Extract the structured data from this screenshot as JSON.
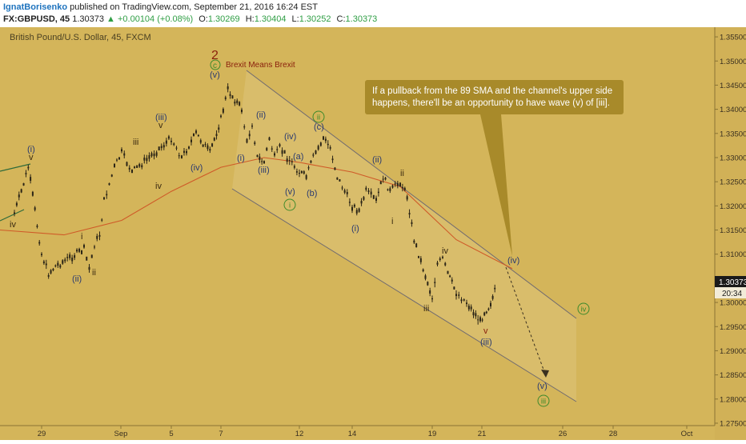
{
  "header": {
    "author": "IgnatBorisenko",
    "published": "published on TradingView.com, September 21, 2016 16:24 EST",
    "symbol": "FX:GBPUSD, 45",
    "last": "1.30373",
    "arrow": "▲",
    "change": "+0.00104 (+0.08%)",
    "o_label": "O:",
    "o_val": "1.30269",
    "h_label": "H:",
    "h_val": "1.30404",
    "l_label": "L:",
    "l_val": "1.30252",
    "c_label": "C:",
    "c_val": "1.30373"
  },
  "chart_data": {
    "type": "candlestick",
    "title": "British Pound/U.S. Dollar, 45, FXCM",
    "colors": {
      "background": "#d4b55a",
      "candles": "#2a2416",
      "sma": "#cf5a28",
      "channel": "#6f6a70",
      "label": "#2a3a70",
      "wave_green": "#3e8a2c",
      "wave_red": "#8a1f0c",
      "callout_bg": "#a88a2a"
    },
    "ylim": [
      1.2745,
      1.357
    ],
    "y_ticks": [
      "1.35500",
      "1.35000",
      "1.34500",
      "1.34000",
      "1.33500",
      "1.33000",
      "1.32500",
      "1.32000",
      "1.31500",
      "1.31000",
      "1.30500",
      "1.30000",
      "1.29500",
      "1.29000",
      "1.28500",
      "1.28000",
      "1.27500"
    ],
    "x_ticks": [
      "29",
      "Sep",
      "5",
      "7",
      "12",
      "14",
      "19",
      "21",
      "26",
      "28",
      "Oct"
    ],
    "last_price": "1.30373",
    "countdown": "20:34",
    "sma_label": "89 SMA",
    "price_path": [
      [
        "Aug 26",
        1.3185
      ],
      [
        "Aug 26",
        1.323
      ],
      [
        "Aug 26",
        1.328
      ],
      [
        "Aug 29",
        1.31
      ],
      [
        "Aug 29",
        1.306
      ],
      [
        "Aug 29",
        1.3075
      ],
      [
        "Aug 31",
        1.311
      ],
      [
        "Aug 31",
        1.307
      ],
      [
        "Aug 31",
        1.312
      ],
      [
        "Aug 31",
        1.314
      ],
      [
        "Sep 1",
        1.321
      ],
      [
        "Sep 1",
        1.328
      ],
      [
        "Sep 2",
        1.331
      ],
      [
        "Sep 2",
        1.327
      ],
      [
        "Sep 5",
        1.334
      ],
      [
        "Sep 5",
        1.33
      ],
      [
        "Sep 6",
        1.335
      ],
      [
        "Sep 6",
        1.333
      ],
      [
        "Sep 6",
        1.331
      ],
      [
        "Sep 7",
        1.338
      ],
      [
        "Sep 7",
        1.344
      ],
      [
        "Sep 7",
        1.342
      ],
      [
        "Sep 8",
        1.34
      ],
      [
        "Sep 8",
        1.333
      ],
      [
        "Sep 8",
        1.337
      ],
      [
        "Sep 8",
        1.33
      ],
      [
        "Sep 9",
        1.329
      ],
      [
        "Sep 9",
        1.334
      ],
      [
        "Sep 9",
        1.33
      ],
      [
        "Sep 9",
        1.332
      ],
      [
        "Sep 12",
        1.327
      ],
      [
        "Sep 12",
        1.326
      ],
      [
        "Sep 12",
        1.33
      ],
      [
        "Sep 13",
        1.334
      ],
      [
        "Sep 13",
        1.332
      ],
      [
        "Sep 13",
        1.326
      ],
      [
        "Sep 14",
        1.32
      ],
      [
        "Sep 14",
        1.319
      ],
      [
        "Sep 14",
        1.323
      ],
      [
        "Sep 15",
        1.321
      ],
      [
        "Sep 15",
        1.326
      ],
      [
        "Sep 15",
        1.323
      ],
      [
        "Sep 16",
        1.325
      ],
      [
        "Sep 16",
        1.322
      ],
      [
        "Sep 16",
        1.313
      ],
      [
        "Sep 19",
        1.301
      ],
      [
        "Sep 19",
        1.308
      ],
      [
        "Sep 19",
        1.309
      ],
      [
        "Sep 19",
        1.306
      ],
      [
        "Sep 20",
        1.302
      ],
      [
        "Sep 20",
        1.3
      ],
      [
        "Sep 21",
        1.296
      ],
      [
        "Sep 21",
        1.298
      ],
      [
        "Sep 21",
        1.299
      ],
      [
        "Sep 21",
        1.301
      ],
      [
        "Sep 21",
        1.3037
      ]
    ],
    "sma_path": [
      [
        "Aug 25",
        1.315
      ],
      [
        "Aug 30",
        1.314
      ],
      [
        "Sep 2",
        1.317
      ],
      [
        "Sep 5",
        1.323
      ],
      [
        "Sep 7",
        1.328
      ],
      [
        "Sep 9",
        1.33
      ],
      [
        "Sep 12",
        1.329
      ],
      [
        "Sep 14",
        1.327
      ],
      [
        "Sep 16",
        1.324
      ],
      [
        "Sep 20",
        1.313
      ],
      [
        "Sep 22",
        1.307
      ]
    ],
    "annotations": {
      "callout": "If a pullback from the 89 SMA and the channel's upper side happens, there'll be an opportunity to have wave (v) of [iii].",
      "event": "Brexit Means Brexit",
      "wave_2": "2",
      "wave_c_circled": "c",
      "waves": [
        "iv",
        "(i)",
        "v",
        "i",
        "(ii)",
        "ii",
        "iii",
        "iv",
        "(iii)",
        "v",
        "(iv)",
        "(v)",
        "(i)",
        "(ii)",
        "(iii)",
        "(iv)",
        "(a)",
        "(v)",
        "(b)",
        "(c)",
        "(i)",
        "i",
        "(ii)",
        "ii",
        "iii",
        "iv",
        "v",
        "(iii)",
        "(iv)",
        "(v)"
      ],
      "circled_green": [
        "i",
        "ii",
        "iii",
        "iv"
      ]
    }
  }
}
